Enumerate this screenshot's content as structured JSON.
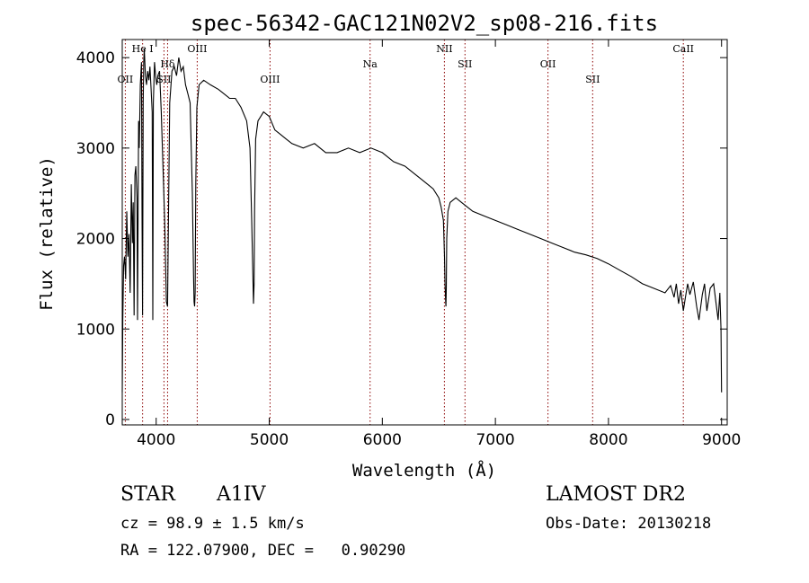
{
  "chart_data": {
    "type": "line",
    "title": "spec-56342-GAC121N02V2_sp08-216.fits",
    "xlabel": "Wavelength (Å)",
    "ylabel": "Flux (relative)",
    "xlim": [
      3700,
      9050
    ],
    "ylim": [
      -60,
      4200
    ],
    "x_ticks": [
      4000,
      5000,
      6000,
      7000,
      8000,
      9000
    ],
    "y_ticks": [
      0,
      1000,
      2000,
      3000,
      4000
    ],
    "grid": false,
    "legend": "none",
    "line_color": "#000000",
    "marker_color": "#8b0000",
    "series": [
      {
        "x": [
          3700,
          3705,
          3712,
          3720,
          3730,
          3740,
          3750,
          3760,
          3770,
          3780,
          3790,
          3797,
          3805,
          3812,
          3820,
          3830,
          3835,
          3845,
          3850,
          3860,
          3870,
          3875,
          3880,
          3885,
          3890,
          3895,
          3905,
          3915,
          3925,
          3935,
          3945,
          3955,
          3965,
          3970,
          3975,
          3985,
          3995,
          4005,
          4015,
          4030,
          4045,
          4060,
          4075,
          4090,
          4101,
          4110,
          4120,
          4140,
          4160,
          4180,
          4200,
          4220,
          4240,
          4260,
          4280,
          4300,
          4320,
          4330,
          4335,
          4340,
          4345,
          4350,
          4360,
          4380,
          4420,
          4480,
          4550,
          4600,
          4650,
          4700,
          4750,
          4800,
          4830,
          4845,
          4855,
          4861,
          4866,
          4870,
          4880,
          4900,
          4950,
          5000,
          5050,
          5100,
          5150,
          5200,
          5300,
          5400,
          5500,
          5600,
          5700,
          5800,
          5900,
          6000,
          6100,
          6200,
          6300,
          6350,
          6400,
          6450,
          6500,
          6520,
          6540,
          6550,
          6555,
          6560,
          6563,
          6566,
          6570,
          6580,
          6600,
          6650,
          6700,
          6750,
          6800,
          6900,
          7000,
          7100,
          7200,
          7300,
          7400,
          7500,
          7600,
          7700,
          7800,
          7900,
          8000,
          8100,
          8200,
          8300,
          8400,
          8500,
          8550,
          8580,
          8600,
          8620,
          8640,
          8662,
          8680,
          8700,
          8720,
          8750,
          8780,
          8800,
          8830,
          8850,
          8870,
          8900,
          8930,
          8950,
          8970,
          8985,
          8995,
          9000
        ],
        "y": [
          300,
          1100,
          1700,
          1800,
          1550,
          2300,
          1800,
          2050,
          1400,
          2600,
          1950,
          2400,
          1150,
          2700,
          2800,
          2450,
          1100,
          3300,
          3000,
          3700,
          3950,
          2300,
          1150,
          3500,
          3950,
          4100,
          3800,
          3700,
          3850,
          3750,
          3900,
          3650,
          3400,
          1100,
          3500,
          3950,
          3800,
          3700,
          3800,
          3850,
          3400,
          2800,
          2200,
          1300,
          1250,
          2400,
          3500,
          3850,
          3900,
          3800,
          4000,
          3850,
          3900,
          3700,
          3600,
          3500,
          2500,
          1600,
          1300,
          1250,
          1400,
          2600,
          3450,
          3700,
          3750,
          3700,
          3650,
          3600,
          3550,
          3550,
          3450,
          3300,
          3000,
          2200,
          1600,
          1280,
          1500,
          2300,
          3100,
          3300,
          3400,
          3350,
          3200,
          3150,
          3100,
          3050,
          3000,
          3050,
          2950,
          2950,
          3000,
          2950,
          3000,
          2950,
          2850,
          2800,
          2700,
          2650,
          2600,
          2550,
          2450,
          2350,
          2200,
          1800,
          1500,
          1300,
          1250,
          1450,
          2000,
          2300,
          2400,
          2450,
          2400,
          2350,
          2300,
          2250,
          2200,
          2150,
          2100,
          2050,
          2000,
          1950,
          1900,
          1850,
          1820,
          1780,
          1720,
          1650,
          1580,
          1500,
          1450,
          1400,
          1480,
          1350,
          1500,
          1280,
          1430,
          1200,
          1350,
          1500,
          1380,
          1520,
          1250,
          1100,
          1380,
          1500,
          1200,
          1450,
          1500,
          1300,
          1100,
          1400,
          1000,
          300
        ]
      }
    ],
    "lines": [
      {
        "x": 3880,
        "label": "He I"
      },
      {
        "x": 3727,
        "label": "OII"
      },
      {
        "x": 4069,
        "label": "SII"
      },
      {
        "x": 4101,
        "label": "Hδ"
      },
      {
        "x": 4363,
        "label": "OIII"
      },
      {
        "x": 5007,
        "label": "OIII"
      },
      {
        "x": 5892,
        "label": "Na"
      },
      {
        "x": 6549,
        "label": "NII"
      },
      {
        "x": 6731,
        "label": "SII"
      },
      {
        "x": 7465,
        "label": "OII"
      },
      {
        "x": 7860,
        "label": "SII"
      },
      {
        "x": 8662,
        "label": "CaII"
      }
    ]
  },
  "info": {
    "object_class": "STAR",
    "subclass": "A1IV",
    "survey": "LAMOST DR2",
    "cz": "cz = 98.9 ± 1.5 km/s",
    "obs_date": "Obs-Date: 20130218",
    "coords": "RA = 122.07900, DEC =   0.90290"
  }
}
